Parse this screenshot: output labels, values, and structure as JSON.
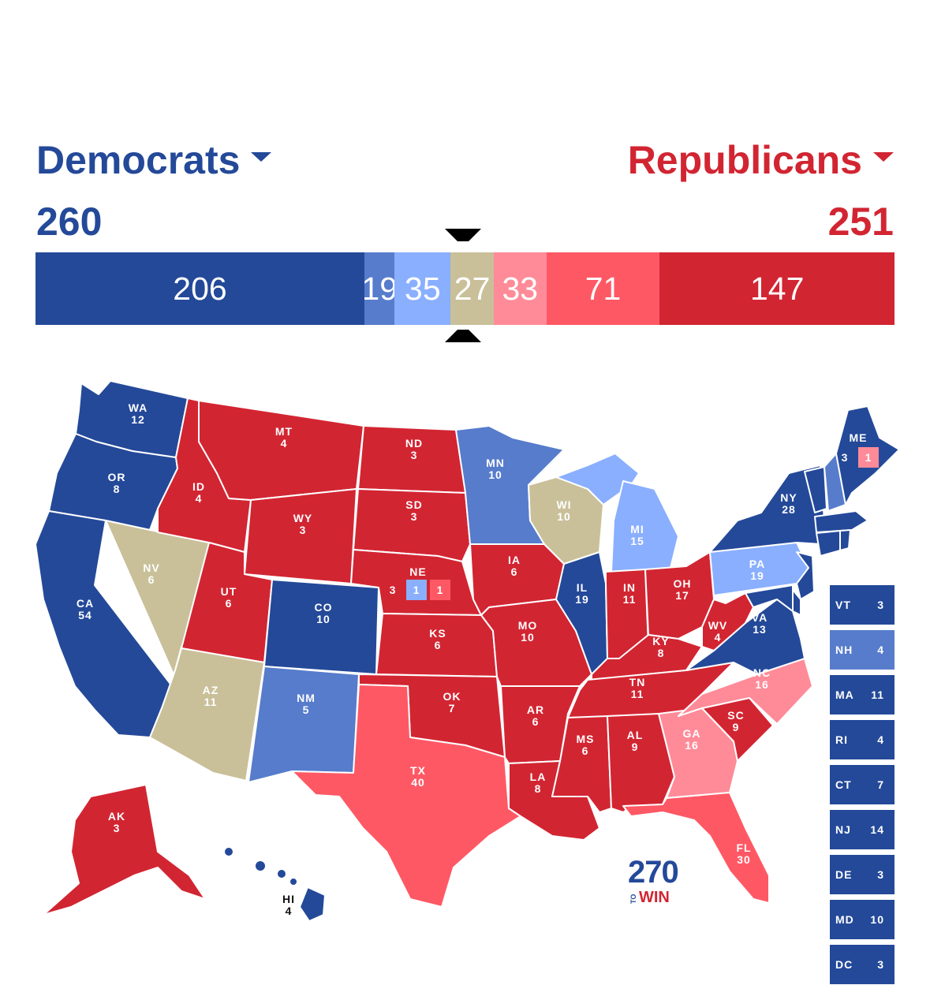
{
  "header": {
    "dem_label": "Democrats",
    "rep_label": "Republicans",
    "dem_total": "260",
    "rep_total": "251"
  },
  "colors": {
    "safe_dem": "#244999",
    "likely_dem": "#577ccc",
    "lean_dem": "#8aafff",
    "tossup": "#c9c09a",
    "lean_rep": "#ff8b98",
    "likely_rep": "#ff5865",
    "safe_rep": "#d22532"
  },
  "ev_bar": [
    {
      "key": "safe_dem",
      "label": "206",
      "value": 206
    },
    {
      "key": "likely_dem",
      "label": "19",
      "value": 19
    },
    {
      "key": "lean_dem",
      "label": "35",
      "value": 35
    },
    {
      "key": "tossup",
      "label": "27",
      "value": 27
    },
    {
      "key": "lean_rep",
      "label": "33",
      "value": 33
    },
    {
      "key": "likely_rep",
      "label": "71",
      "value": 71
    },
    {
      "key": "safe_rep",
      "label": "147",
      "value": 147
    }
  ],
  "states": {
    "WA": {
      "abbr": "WA",
      "ev": "12",
      "rating": "safe_dem"
    },
    "OR": {
      "abbr": "OR",
      "ev": "8",
      "rating": "safe_dem"
    },
    "CA": {
      "abbr": "CA",
      "ev": "54",
      "rating": "safe_dem"
    },
    "NV": {
      "abbr": "NV",
      "ev": "6",
      "rating": "tossup"
    },
    "ID": {
      "abbr": "ID",
      "ev": "4",
      "rating": "safe_rep"
    },
    "MT": {
      "abbr": "MT",
      "ev": "4",
      "rating": "safe_rep"
    },
    "WY": {
      "abbr": "WY",
      "ev": "3",
      "rating": "safe_rep"
    },
    "UT": {
      "abbr": "UT",
      "ev": "6",
      "rating": "safe_rep"
    },
    "AZ": {
      "abbr": "AZ",
      "ev": "11",
      "rating": "tossup"
    },
    "CO": {
      "abbr": "CO",
      "ev": "10",
      "rating": "safe_dem"
    },
    "NM": {
      "abbr": "NM",
      "ev": "5",
      "rating": "likely_dem"
    },
    "ND": {
      "abbr": "ND",
      "ev": "3",
      "rating": "safe_rep"
    },
    "SD": {
      "abbr": "SD",
      "ev": "3",
      "rating": "safe_rep"
    },
    "NE": {
      "abbr": "NE",
      "ev": "3",
      "rating": "safe_rep",
      "d1": "1",
      "d2": "1"
    },
    "KS": {
      "abbr": "KS",
      "ev": "6",
      "rating": "safe_rep"
    },
    "OK": {
      "abbr": "OK",
      "ev": "7",
      "rating": "safe_rep"
    },
    "TX": {
      "abbr": "TX",
      "ev": "40",
      "rating": "likely_rep"
    },
    "MN": {
      "abbr": "MN",
      "ev": "10",
      "rating": "likely_dem"
    },
    "IA": {
      "abbr": "IA",
      "ev": "6",
      "rating": "safe_rep"
    },
    "MO": {
      "abbr": "MO",
      "ev": "10",
      "rating": "safe_rep"
    },
    "AR": {
      "abbr": "AR",
      "ev": "6",
      "rating": "safe_rep"
    },
    "LA": {
      "abbr": "LA",
      "ev": "8",
      "rating": "safe_rep"
    },
    "WI": {
      "abbr": "WI",
      "ev": "10",
      "rating": "tossup"
    },
    "IL": {
      "abbr": "IL",
      "ev": "19",
      "rating": "safe_dem"
    },
    "MI": {
      "abbr": "MI",
      "ev": "15",
      "rating": "lean_dem"
    },
    "IN": {
      "abbr": "IN",
      "ev": "11",
      "rating": "safe_rep"
    },
    "OH": {
      "abbr": "OH",
      "ev": "17",
      "rating": "safe_rep"
    },
    "KY": {
      "abbr": "KY",
      "ev": "8",
      "rating": "safe_rep"
    },
    "TN": {
      "abbr": "TN",
      "ev": "11",
      "rating": "safe_rep"
    },
    "MS": {
      "abbr": "MS",
      "ev": "6",
      "rating": "safe_rep"
    },
    "AL": {
      "abbr": "AL",
      "ev": "9",
      "rating": "safe_rep"
    },
    "GA": {
      "abbr": "GA",
      "ev": "16",
      "rating": "lean_rep"
    },
    "FL": {
      "abbr": "FL",
      "ev": "30",
      "rating": "likely_rep"
    },
    "SC": {
      "abbr": "SC",
      "ev": "9",
      "rating": "safe_rep"
    },
    "NC": {
      "abbr": "NC",
      "ev": "16",
      "rating": "lean_rep"
    },
    "VA": {
      "abbr": "VA",
      "ev": "13",
      "rating": "safe_dem"
    },
    "WV": {
      "abbr": "WV",
      "ev": "4",
      "rating": "safe_rep"
    },
    "PA": {
      "abbr": "PA",
      "ev": "19",
      "rating": "lean_dem"
    },
    "NY": {
      "abbr": "NY",
      "ev": "28",
      "rating": "safe_dem"
    },
    "ME": {
      "abbr": "ME",
      "ev": "3",
      "rating": "safe_dem",
      "d2": "1"
    },
    "AK": {
      "abbr": "AK",
      "ev": "3",
      "rating": "safe_rep"
    },
    "HI": {
      "abbr": "HI",
      "ev": "4",
      "rating": "safe_dem"
    }
  },
  "small_states": [
    {
      "abbr": "VT",
      "ev": "3",
      "rating": "safe_dem"
    },
    {
      "abbr": "NH",
      "ev": "4",
      "rating": "likely_dem"
    },
    {
      "abbr": "MA",
      "ev": "11",
      "rating": "safe_dem"
    },
    {
      "abbr": "RI",
      "ev": "4",
      "rating": "safe_dem"
    },
    {
      "abbr": "CT",
      "ev": "7",
      "rating": "safe_dem"
    },
    {
      "abbr": "NJ",
      "ev": "14",
      "rating": "safe_dem"
    },
    {
      "abbr": "DE",
      "ev": "3",
      "rating": "safe_dem"
    },
    {
      "abbr": "MD",
      "ev": "10",
      "rating": "safe_dem"
    },
    {
      "abbr": "DC",
      "ev": "3",
      "rating": "safe_dem"
    }
  ],
  "logo": {
    "number": "270",
    "to": "TO",
    "win": "WIN"
  }
}
